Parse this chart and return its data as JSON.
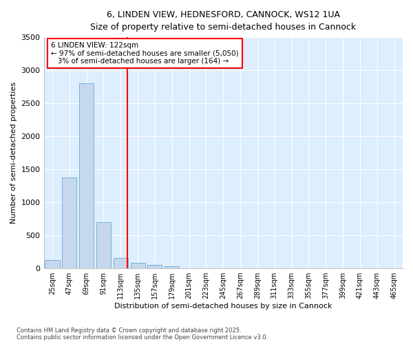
{
  "title_line1": "6, LINDEN VIEW, HEDNESFORD, CANNOCK, WS12 1UA",
  "title_line2": "Size of property relative to semi-detached houses in Cannock",
  "xlabel": "Distribution of semi-detached houses by size in Cannock",
  "ylabel": "Number of semi-detached properties",
  "categories": [
    "25sqm",
    "47sqm",
    "69sqm",
    "91sqm",
    "113sqm",
    "135sqm",
    "157sqm",
    "179sqm",
    "201sqm",
    "223sqm",
    "245sqm",
    "267sqm",
    "289sqm",
    "311sqm",
    "333sqm",
    "355sqm",
    "377sqm",
    "399sqm",
    "421sqm",
    "443sqm",
    "465sqm"
  ],
  "values": [
    130,
    1380,
    2800,
    700,
    160,
    90,
    55,
    30,
    5,
    2,
    1,
    0,
    0,
    0,
    0,
    0,
    0,
    0,
    0,
    0,
    0
  ],
  "bar_color": "#c5d8ee",
  "bar_edge_color": "#7aafd4",
  "background_color": "#ddeeff",
  "grid_color": "#ffffff",
  "property_label": "6 LINDEN VIEW: 122sqm",
  "pct_smaller": 97,
  "pct_smaller_count": 5050,
  "pct_larger": 3,
  "pct_larger_count": 164,
  "vline_color": "red",
  "ylim": [
    0,
    3500
  ],
  "yticks": [
    0,
    500,
    1000,
    1500,
    2000,
    2500,
    3000,
    3500
  ],
  "vline_index": 4.41,
  "footer_line1": "Contains HM Land Registry data © Crown copyright and database right 2025.",
  "footer_line2": "Contains public sector information licensed under the Open Government Licence v3.0."
}
